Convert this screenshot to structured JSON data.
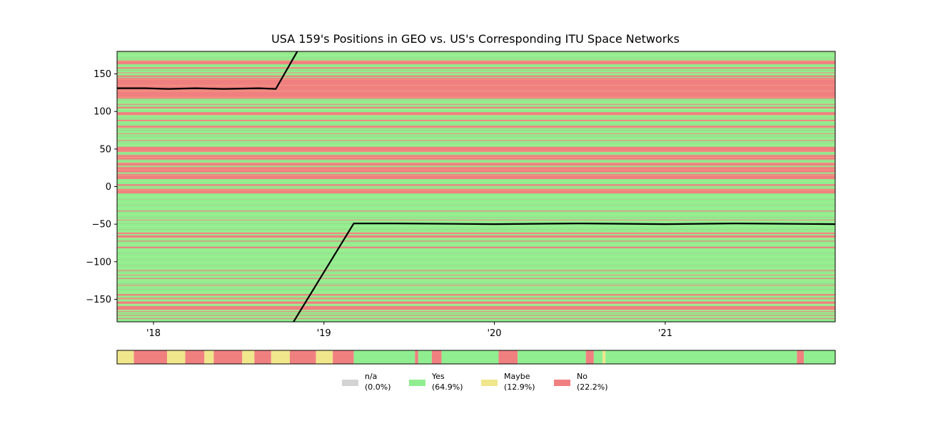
{
  "chart_data": {
    "type": "heatmap",
    "title": "USA 159's Positions in GEO vs. US's Corresponding ITU Space Networks",
    "xlabel": "",
    "ylabel": "",
    "x_range": [
      "2017-10-15",
      "2021-12-31"
    ],
    "ylim": [
      -180,
      180
    ],
    "x_ticks": [
      {
        "date": "2018-01-01",
        "label": "'18"
      },
      {
        "date": "2019-01-01",
        "label": "'19"
      },
      {
        "date": "2020-01-01",
        "label": "'20"
      },
      {
        "date": "2021-01-01",
        "label": "'21"
      }
    ],
    "y_ticks": [
      {
        "value": 150,
        "label": "150"
      },
      {
        "value": 100,
        "label": "100"
      },
      {
        "value": 50,
        "label": "50"
      },
      {
        "value": 0,
        "label": "0"
      },
      {
        "value": -50,
        "label": "−50"
      },
      {
        "value": -100,
        "label": "−100"
      },
      {
        "value": -150,
        "label": "−150"
      }
    ],
    "status_colors": {
      "na": "#d3d3d3",
      "yes": "#90ee90",
      "maybe": "#f0e68c",
      "no": "#f08080"
    },
    "longitude_bands": [
      {
        "from": 163,
        "to": 168,
        "status": "no"
      },
      {
        "from": 157,
        "to": 159,
        "status": "no"
      },
      {
        "from": 151,
        "to": 152,
        "status": "no"
      },
      {
        "from": 146,
        "to": 148,
        "status": "no"
      },
      {
        "from": 117,
        "to": 145,
        "status": "no"
      },
      {
        "from": 109,
        "to": 110,
        "status": "no"
      },
      {
        "from": 104,
        "to": 106,
        "status": "no"
      },
      {
        "from": 95,
        "to": 99,
        "status": "no"
      },
      {
        "from": 87,
        "to": 89,
        "status": "no"
      },
      {
        "from": 78,
        "to": 81,
        "status": "no"
      },
      {
        "from": 70,
        "to": 71,
        "status": "no"
      },
      {
        "from": 61,
        "to": 62,
        "status": "no"
      },
      {
        "from": 46,
        "to": 53,
        "status": "no"
      },
      {
        "from": 36,
        "to": 42,
        "status": "no"
      },
      {
        "from": 28,
        "to": 32,
        "status": "no"
      },
      {
        "from": 19,
        "to": 26,
        "status": "no"
      },
      {
        "from": 10,
        "to": 17,
        "status": "no"
      },
      {
        "from": 1,
        "to": 3,
        "status": "no"
      },
      {
        "from": -9,
        "to": -3,
        "status": "no"
      },
      {
        "from": -33,
        "to": -32,
        "status": "no"
      },
      {
        "from": -45,
        "to": -44,
        "status": "no"
      },
      {
        "from": -63,
        "to": -61,
        "status": "no"
      },
      {
        "from": -68,
        "to": -65,
        "status": "no"
      },
      {
        "from": -73,
        "to": -72,
        "status": "no"
      },
      {
        "from": -82,
        "to": -80,
        "status": "no"
      },
      {
        "from": -112,
        "to": -111,
        "status": "no"
      },
      {
        "from": -118,
        "to": -117,
        "status": "no"
      },
      {
        "from": -123,
        "to": -122,
        "status": "no"
      },
      {
        "from": -132,
        "to": -131,
        "status": "no"
      },
      {
        "from": -145,
        "to": -143,
        "status": "no"
      },
      {
        "from": -150,
        "to": -148,
        "status": "no"
      },
      {
        "from": -156,
        "to": -153,
        "status": "no"
      },
      {
        "from": -164,
        "to": -159,
        "status": "no"
      },
      {
        "from": -167,
        "to": -166,
        "status": "no"
      },
      {
        "from": -172,
        "to": -171,
        "status": "no"
      },
      {
        "from": -176,
        "to": -175,
        "status": "no"
      }
    ],
    "position_series": [
      {
        "segment": [
          {
            "x": "2017-10-15",
            "y": 131
          },
          {
            "x": "2017-12-15",
            "y": 131
          },
          {
            "x": "2018-02-01",
            "y": 130
          },
          {
            "x": "2018-04-01",
            "y": 131
          },
          {
            "x": "2018-06-01",
            "y": 130
          },
          {
            "x": "2018-08-15",
            "y": 131
          },
          {
            "x": "2018-09-20",
            "y": 130
          },
          {
            "x": "2018-11-05",
            "y": 180
          }
        ]
      },
      {
        "segment": [
          {
            "x": "2018-10-28",
            "y": -180
          },
          {
            "x": "2019-03-06",
            "y": -49
          },
          {
            "x": "2019-06-01",
            "y": -49
          },
          {
            "x": "2020-01-01",
            "y": -50
          },
          {
            "x": "2020-07-01",
            "y": -49
          },
          {
            "x": "2021-01-01",
            "y": -50
          },
          {
            "x": "2021-06-01",
            "y": -49
          },
          {
            "x": "2021-12-31",
            "y": -50
          }
        ]
      }
    ],
    "status_strip": [
      {
        "from": "2017-10-15",
        "to": "2017-11-20",
        "status": "maybe"
      },
      {
        "from": "2017-11-20",
        "to": "2018-01-30",
        "status": "no"
      },
      {
        "from": "2018-01-30",
        "to": "2018-03-10",
        "status": "maybe"
      },
      {
        "from": "2018-03-10",
        "to": "2018-04-20",
        "status": "no"
      },
      {
        "from": "2018-04-20",
        "to": "2018-05-10",
        "status": "maybe"
      },
      {
        "from": "2018-05-10",
        "to": "2018-07-10",
        "status": "no"
      },
      {
        "from": "2018-07-10",
        "to": "2018-08-05",
        "status": "maybe"
      },
      {
        "from": "2018-08-05",
        "to": "2018-09-10",
        "status": "no"
      },
      {
        "from": "2018-09-10",
        "to": "2018-10-20",
        "status": "maybe"
      },
      {
        "from": "2018-10-20",
        "to": "2018-12-15",
        "status": "no"
      },
      {
        "from": "2018-12-15",
        "to": "2019-01-20",
        "status": "maybe"
      },
      {
        "from": "2019-01-20",
        "to": "2019-03-06",
        "status": "no"
      },
      {
        "from": "2019-03-06",
        "to": "2019-07-15",
        "status": "yes"
      },
      {
        "from": "2019-07-15",
        "to": "2019-07-22",
        "status": "no"
      },
      {
        "from": "2019-07-22",
        "to": "2019-08-20",
        "status": "yes"
      },
      {
        "from": "2019-08-20",
        "to": "2019-09-10",
        "status": "no"
      },
      {
        "from": "2019-09-10",
        "to": "2020-01-10",
        "status": "yes"
      },
      {
        "from": "2020-01-10",
        "to": "2020-02-20",
        "status": "no"
      },
      {
        "from": "2020-02-20",
        "to": "2020-07-15",
        "status": "yes"
      },
      {
        "from": "2020-07-15",
        "to": "2020-08-01",
        "status": "no"
      },
      {
        "from": "2020-08-01",
        "to": "2020-08-20",
        "status": "yes"
      },
      {
        "from": "2020-08-20",
        "to": "2020-08-26",
        "status": "maybe"
      },
      {
        "from": "2020-08-26",
        "to": "2021-10-10",
        "status": "yes"
      },
      {
        "from": "2021-10-10",
        "to": "2021-10-25",
        "status": "no"
      },
      {
        "from": "2021-10-25",
        "to": "2021-12-31",
        "status": "yes"
      }
    ],
    "legend_position": "below",
    "legend": [
      {
        "key": "na",
        "label": "n/a",
        "pct": "(0.0%)",
        "color": "#d3d3d3"
      },
      {
        "key": "yes",
        "label": "Yes",
        "pct": "(64.9%)",
        "color": "#90ee90"
      },
      {
        "key": "maybe",
        "label": "Maybe",
        "pct": "(12.9%)",
        "color": "#f0e68c"
      },
      {
        "key": "no",
        "label": "No",
        "pct": "(22.2%)",
        "color": "#f08080"
      }
    ]
  }
}
